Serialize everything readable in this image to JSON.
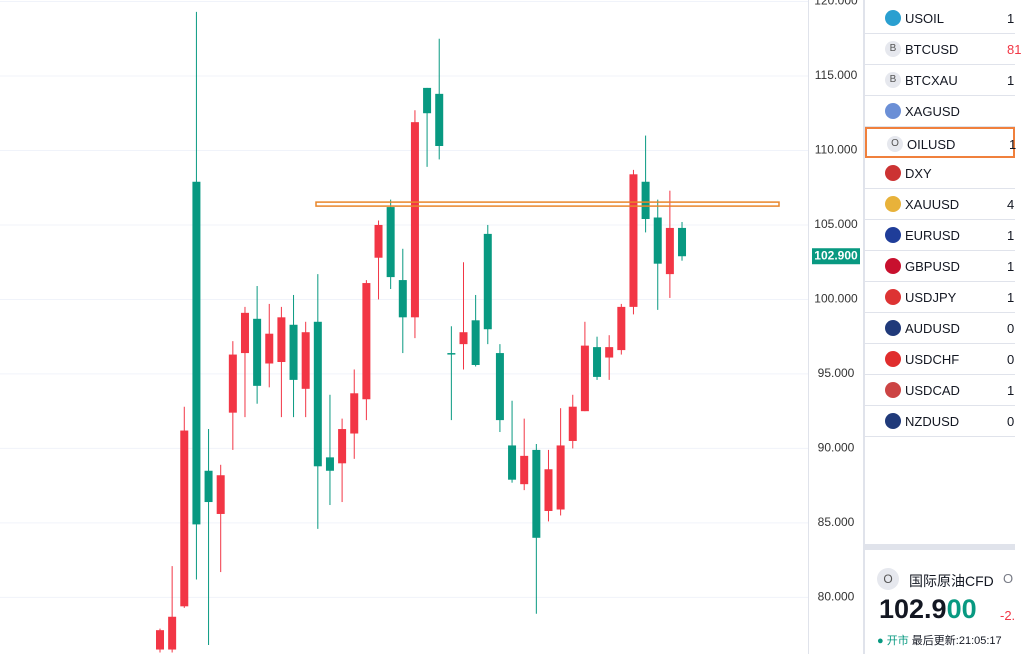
{
  "chart_data": {
    "type": "candlestick",
    "up_color": "#f23645",
    "down_color": "#089981",
    "open": [
      76.5,
      76.5,
      79.4,
      107.9,
      88.5,
      85.6,
      92.4,
      96.4,
      98.7,
      95.7,
      95.8,
      98.3,
      94.0,
      98.5,
      89.4,
      89.0,
      91.0,
      93.3,
      102.8,
      106.2,
      101.3,
      98.8,
      114.2,
      113.8,
      96.4,
      97.0,
      98.6,
      104.4,
      96.4,
      90.2,
      87.6,
      89.9,
      85.8,
      85.9,
      90.5,
      92.5,
      96.8,
      96.1,
      96.6,
      99.5,
      107.9,
      105.5,
      101.7,
      104.8
    ],
    "high": [
      77.9,
      82.1,
      92.8,
      119.3,
      91.3,
      88.9,
      97.2,
      99.5,
      100.9,
      99.7,
      99.5,
      100.3,
      98.5,
      101.7,
      93.6,
      92.0,
      95.3,
      101.3,
      105.3,
      106.7,
      103.4,
      112.7,
      114.2,
      117.5,
      98.2,
      102.5,
      100.3,
      105.0,
      97.0,
      93.2,
      92.0,
      90.3,
      89.9,
      92.7,
      93.6,
      98.5,
      97.5,
      97.6,
      99.7,
      108.7,
      111.0,
      106.7,
      107.3,
      105.2
    ],
    "low": [
      76.3,
      76.3,
      79.3,
      81.2,
      76.8,
      81.7,
      89.9,
      92.1,
      93.0,
      94.1,
      92.1,
      92.1,
      92.1,
      84.6,
      86.2,
      86.4,
      89.3,
      91.9,
      100.0,
      100.7,
      96.4,
      97.4,
      108.9,
      109.4,
      91.9,
      95.3,
      95.5,
      97.0,
      91.1,
      87.7,
      87.2,
      78.9,
      85.1,
      85.5,
      90.0,
      92.5,
      94.6,
      94.6,
      96.3,
      99.0,
      104.5,
      99.3,
      100.1,
      102.6
    ],
    "close": [
      77.8,
      78.7,
      91.2,
      84.9,
      86.4,
      88.2,
      96.3,
      99.1,
      94.2,
      97.7,
      98.8,
      94.6,
      97.8,
      88.8,
      88.5,
      91.3,
      93.7,
      101.1,
      105.0,
      101.5,
      98.8,
      111.9,
      112.5,
      110.3,
      96.3,
      97.8,
      95.6,
      98.0,
      91.9,
      87.9,
      89.5,
      84.0,
      88.6,
      90.2,
      92.8,
      96.9,
      94.8,
      96.8,
      99.5,
      108.4,
      105.4,
      102.4,
      104.8,
      102.9
    ],
    "level": 106.4,
    "level_color": "#e8862a",
    "ylim": [
      76.2,
      120.1
    ],
    "yticks": [
      {
        "value": 80,
        "label": "80.000"
      },
      {
        "value": 85,
        "label": "85.000"
      },
      {
        "value": 90,
        "label": "90.000"
      },
      {
        "value": 95,
        "label": "95.000"
      },
      {
        "value": 100,
        "label": "100.000"
      },
      {
        "value": 105,
        "label": "105.000"
      },
      {
        "value": 110,
        "label": "110.000"
      },
      {
        "value": 115,
        "label": "115.000"
      },
      {
        "value": 120,
        "label": "120.000"
      }
    ],
    "price_tag": {
      "value": 102.9,
      "label": "102.900"
    },
    "grid": true
  },
  "watchlist": [
    {
      "symbol": "USOIL",
      "value": "1",
      "icon_color": "#2a9fd0"
    },
    {
      "symbol": "BTCUSD",
      "value": "81",
      "value_color": "#f23645",
      "icon": "B"
    },
    {
      "symbol": "BTCXAU",
      "value": "1",
      "icon": "B"
    },
    {
      "symbol": "XAGUSD",
      "value": null,
      "icon_color": "#6b8fd6"
    },
    {
      "symbol": "OILUSD",
      "value": "1",
      "icon": "O",
      "selected": true
    },
    {
      "symbol": "DXY",
      "value": null,
      "icon_color": "#c33"
    },
    {
      "symbol": "XAUUSD",
      "value": "4",
      "icon_color": "#e8b23a"
    },
    {
      "symbol": "EURUSD",
      "value": "1",
      "icon_color": "#1f3d99"
    },
    {
      "symbol": "GBPUSD",
      "value": "1",
      "icon_color": "#c8102e"
    },
    {
      "symbol": "USDJPY",
      "value": "1",
      "icon_color": "#d33"
    },
    {
      "symbol": "AUDUSD",
      "value": "0",
      "icon_color": "#203a7a"
    },
    {
      "symbol": "USDCHF",
      "value": "0",
      "icon_color": "#e02d2d"
    },
    {
      "symbol": "USDCAD",
      "value": "1",
      "icon_color": "#c44"
    },
    {
      "symbol": "NZDUSD",
      "value": "0",
      "icon_color": "#203a7a"
    }
  ],
  "detail": {
    "icon": "O",
    "name": "国际原油CFD",
    "exchange": "O",
    "price_main": "102.9",
    "price_tail": "00",
    "change": "-2.",
    "status": "开市",
    "updated": "最后更新:21:05:17"
  }
}
